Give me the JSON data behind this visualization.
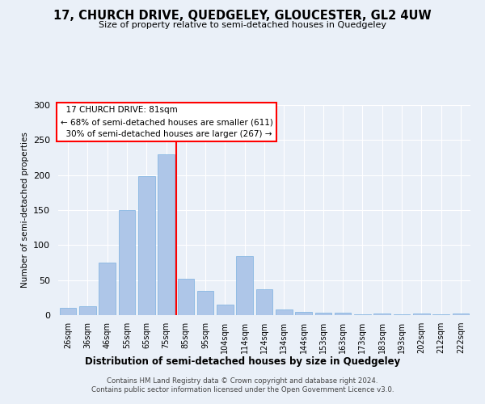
{
  "title": "17, CHURCH DRIVE, QUEDGELEY, GLOUCESTER, GL2 4UW",
  "subtitle": "Size of property relative to semi-detached houses in Quedgeley",
  "xlabel": "Distribution of semi-detached houses by size in Quedgeley",
  "ylabel": "Number of semi-detached properties",
  "categories": [
    "26sqm",
    "36sqm",
    "46sqm",
    "55sqm",
    "65sqm",
    "75sqm",
    "85sqm",
    "95sqm",
    "104sqm",
    "114sqm",
    "124sqm",
    "134sqm",
    "144sqm",
    "153sqm",
    "163sqm",
    "173sqm",
    "183sqm",
    "193sqm",
    "202sqm",
    "212sqm",
    "222sqm"
  ],
  "values": [
    10,
    13,
    75,
    150,
    198,
    230,
    52,
    35,
    15,
    84,
    37,
    8,
    5,
    4,
    3,
    1,
    2,
    1,
    2,
    1,
    2
  ],
  "bar_color": "#aec6e8",
  "bar_edge_color": "#7aafe0",
  "red_line_x": 5.5,
  "property_label": "17 CHURCH DRIVE: 81sqm",
  "smaller_pct": "68%",
  "smaller_count": 611,
  "larger_pct": "30%",
  "larger_count": 267,
  "ylim": [
    0,
    300
  ],
  "yticks": [
    0,
    50,
    100,
    150,
    200,
    250,
    300
  ],
  "footer1": "Contains HM Land Registry data © Crown copyright and database right 2024.",
  "footer2": "Contains public sector information licensed under the Open Government Licence v3.0.",
  "bg_color": "#eaf0f8",
  "grid_color": "#ffffff"
}
